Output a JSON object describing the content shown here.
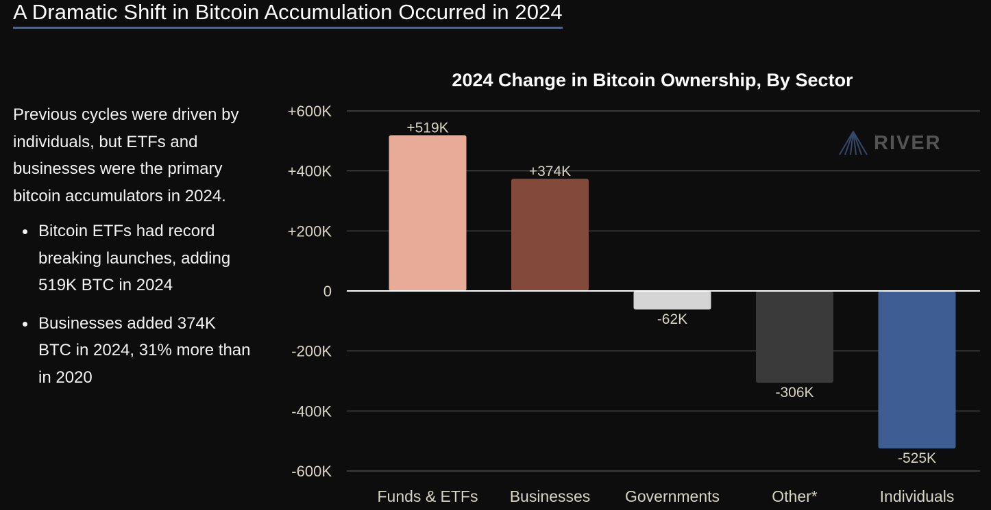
{
  "header": {
    "title": "A Dramatic Shift in Bitcoin Accumulation Occurred in 2024"
  },
  "summary": {
    "intro": "Previous cycles were driven by individuals, but ETFs and businesses were the primary bitcoin accumulators in 2024.",
    "bullets": [
      "Bitcoin ETFs had record breaking launches, adding 519K BTC in 2024",
      "Businesses added 374K BTC in 2024, 31% more than in 2020"
    ]
  },
  "logo": {
    "name": "RIVER",
    "icon": "river-logo-icon"
  },
  "colors": {
    "background": "#0d0d0d",
    "title_underline": "#3f6aa6",
    "gridline": "#555555",
    "zero_line": "#ffffff",
    "tick_label": "#d8d4c4",
    "data_label": "#d8d4c4"
  },
  "chart_data": {
    "type": "bar",
    "title": "2024 Change in Bitcoin Ownership, By Sector",
    "xlabel": "",
    "ylabel": "",
    "categories": [
      "Funds & ETFs",
      "Businesses",
      "Governments",
      "Other*",
      "Individuals"
    ],
    "values": [
      519000,
      374000,
      -62000,
      -306000,
      -525000
    ],
    "data_labels": [
      "+519K",
      "+374K",
      "-62K",
      "-306K",
      "-525K"
    ],
    "bar_colors": [
      "#e8ab98",
      "#834a3b",
      "#d5d5d5",
      "#3a3a3a",
      "#3e5e93"
    ],
    "ylim": [
      -600000,
      600000
    ],
    "yticks": [
      600000,
      400000,
      200000,
      0,
      -200000,
      -400000,
      -600000
    ],
    "ytick_labels": [
      "+600K",
      "+400K",
      "+200K",
      "0",
      "-200K",
      "-400K",
      "-600K"
    ],
    "grid": true,
    "legend": "none"
  }
}
